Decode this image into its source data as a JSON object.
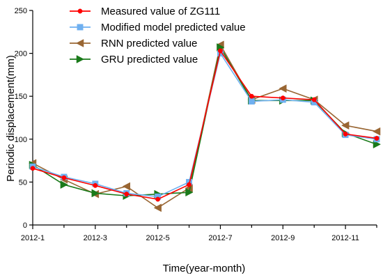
{
  "chart_data": {
    "type": "line",
    "title": "",
    "xlabel": "Time(year-month)",
    "ylabel": "Periodic displacement(mm)",
    "x": [
      "2012-1",
      "2012-2",
      "2012-3",
      "2012-4",
      "2012-5",
      "2012-6",
      "2012-7",
      "2012-8",
      "2012-9",
      "2012-10",
      "2012-11",
      "2012-12"
    ],
    "x_tick_labels": [
      "2012-1",
      "2012-3",
      "2012-5",
      "2012-7",
      "2012-9",
      "2012-11"
    ],
    "ylim": [
      0,
      250
    ],
    "y_ticks": [
      0,
      50,
      100,
      150,
      200,
      250
    ],
    "grid": false,
    "legend_position": "top-left",
    "series": [
      {
        "name": "Measured value of ZG111",
        "color": "#ff0000",
        "marker": "circle",
        "values": [
          66,
          55,
          46,
          36,
          30,
          47,
          203,
          150,
          148,
          146,
          106,
          101
        ]
      },
      {
        "name": "Modified model predicted value",
        "color": "#6fb0f0",
        "marker": "square",
        "values": [
          68,
          56,
          48,
          37,
          33,
          50,
          200,
          144,
          146,
          143,
          105,
          100
        ]
      },
      {
        "name": "RNN predicted value",
        "color": "#996633",
        "marker": "triangle-left",
        "values": [
          72,
          53,
          36,
          45,
          20,
          43,
          210,
          146,
          159,
          146,
          116,
          109
        ]
      },
      {
        "name": "GRU predicted value",
        "color": "#1a7a1a",
        "marker": "triangle-right",
        "values": [
          70,
          47,
          37,
          34,
          36,
          38,
          207,
          145,
          145,
          145,
          107,
          94
        ]
      }
    ]
  }
}
